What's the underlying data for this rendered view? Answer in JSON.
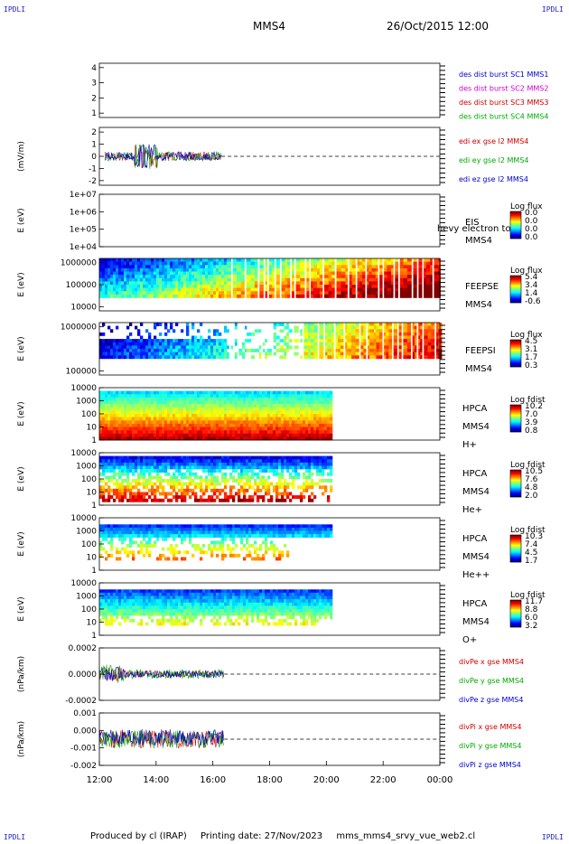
{
  "header": {
    "corner_label": "IPDLI",
    "spacecraft": "MMS4",
    "datetime": "26/Oct/2015 12:00"
  },
  "footer": {
    "produced_by": "Produced by cl (IRAP)",
    "printing_date": "Printing date: 27/Nov/2023",
    "product": "mms_mms4_srvy_vue_web2.cl"
  },
  "chart_data": [
    {
      "type": "line",
      "ylabel": "",
      "yticks": [
        "4",
        "3",
        "2",
        "1"
      ],
      "ylim": [
        0.6,
        4.4
      ],
      "legend": [
        {
          "label": "des dist burst SC1 MMS1",
          "color": "#0000cc"
        },
        {
          "label": "des dist burst SC2 MMS2",
          "color": "#cc00cc"
        },
        {
          "label": "des dist burst SC3 MMS3",
          "color": "#cc0000"
        },
        {
          "label": "des dist burst SC4 MMS4",
          "color": "#00aa00"
        }
      ]
    },
    {
      "type": "line",
      "ylabel": "(mV/m)",
      "yticks": [
        "2",
        "1",
        "0",
        "-1",
        "-2"
      ],
      "ylim": [
        -2.3,
        2.3
      ],
      "time_range_hours": [
        12.2,
        16.3
      ],
      "legend": [
        {
          "label": "edi ex gse l2 MMS4",
          "color": "#cc0000"
        },
        {
          "label": "edi ey gse l2 MMS4",
          "color": "#00aa00"
        },
        {
          "label": "edi ez gse l2 MMS4",
          "color": "#0000cc"
        }
      ]
    },
    {
      "type": "heatmap",
      "ylabel": "E (eV)",
      "yticks": [
        "1e+07",
        "1e+06",
        "1e+05",
        "1e+04"
      ],
      "instrument": [
        "EIS",
        "MMS4"
      ],
      "overlay_text": "hevy electron to",
      "cbar_title": "Log flux",
      "cbar_ticks": [
        "0.0",
        "0.0",
        "0.0",
        "0.0"
      ],
      "data_range_hours": null
    },
    {
      "type": "heatmap",
      "ylabel": "E (eV)",
      "yticks": [
        "1000000",
        "100000",
        "10000"
      ],
      "instrument": [
        "FEEPSE",
        "MMS4"
      ],
      "cbar_title": "Log flux",
      "cbar_ticks": [
        "5.4",
        "3.4",
        "1.4",
        "-0.6"
      ],
      "data_range_hours": [
        12.0,
        24.0
      ]
    },
    {
      "type": "heatmap",
      "ylabel": "E (eV)",
      "yticks": [
        "1000000",
        "100000"
      ],
      "instrument": [
        "FEEPSI",
        "MMS4"
      ],
      "cbar_title": "Log flux",
      "cbar_ticks": [
        "4.5",
        "3.1",
        "1.7",
        "0.3"
      ],
      "data_range_hours": [
        12.0,
        24.0
      ]
    },
    {
      "type": "heatmap",
      "ylabel": "E (eV)",
      "yticks": [
        "10000",
        "1000",
        "100",
        "10",
        "1"
      ],
      "instrument": [
        "HPCA",
        "MMS4",
        "H+"
      ],
      "cbar_title": "Log fdist",
      "cbar_ticks": [
        "10.2",
        "7.0",
        "3.9",
        "0.8"
      ],
      "data_range_hours": [
        12.0,
        20.15
      ]
    },
    {
      "type": "heatmap",
      "ylabel": "E (eV)",
      "yticks": [
        "10000",
        "1000",
        "100",
        "10",
        "1"
      ],
      "instrument": [
        "HPCA",
        "MMS4",
        "He+"
      ],
      "cbar_title": "Log fdist",
      "cbar_ticks": [
        "10.5",
        "7.6",
        "4.8",
        "2.0"
      ],
      "data_range_hours": [
        12.0,
        20.15
      ]
    },
    {
      "type": "heatmap",
      "ylabel": "E (eV)",
      "yticks": [
        "10000",
        "1000",
        "100",
        "10",
        "1"
      ],
      "instrument": [
        "HPCA",
        "MMS4",
        "He++"
      ],
      "cbar_title": "Log fdist",
      "cbar_ticks": [
        "10.3",
        "7.4",
        "4.5",
        "1.7"
      ],
      "data_range_hours": [
        12.0,
        20.15
      ]
    },
    {
      "type": "heatmap",
      "ylabel": "E (eV)",
      "yticks": [
        "10000",
        "1000",
        "100",
        "10",
        "1"
      ],
      "instrument": [
        "HPCA",
        "MMS4",
        "O+"
      ],
      "cbar_title": "Log fdist",
      "cbar_ticks": [
        "11.7",
        "8.8",
        "6.0",
        "3.2"
      ],
      "data_range_hours": [
        12.0,
        20.15
      ]
    },
    {
      "type": "line",
      "ylabel": "(nPa/km)",
      "yticks": [
        "0.0002",
        "0.0000",
        "-0.0002"
      ],
      "ylim": [
        -0.0003,
        0.0003
      ],
      "time_range_hours": [
        12.0,
        16.4
      ],
      "legend": [
        {
          "label": "divPe x gse MMS4",
          "color": "#cc0000"
        },
        {
          "label": "divPe y gse MMS4",
          "color": "#00aa00"
        },
        {
          "label": "divPe z gse MMS4",
          "color": "#0000cc"
        }
      ]
    },
    {
      "type": "line",
      "ylabel": "(nPa/km)",
      "yticks": [
        "0.001",
        "0.000",
        "-0.001",
        "-0.002"
      ],
      "ylim": [
        -0.0022,
        0.0013
      ],
      "time_range_hours": [
        12.0,
        16.4
      ],
      "legend": [
        {
          "label": "divPi x gse MMS4",
          "color": "#cc0000"
        },
        {
          "label": "divPi y gse MMS4",
          "color": "#00aa00"
        },
        {
          "label": "divPi z gse MMS4",
          "color": "#0000cc"
        }
      ]
    }
  ],
  "x_axis": {
    "range_hours": [
      12,
      24
    ],
    "tick_labels": [
      "12:00",
      "14:00",
      "16:00",
      "18:00",
      "20:00",
      "22:00",
      "00:00"
    ]
  }
}
